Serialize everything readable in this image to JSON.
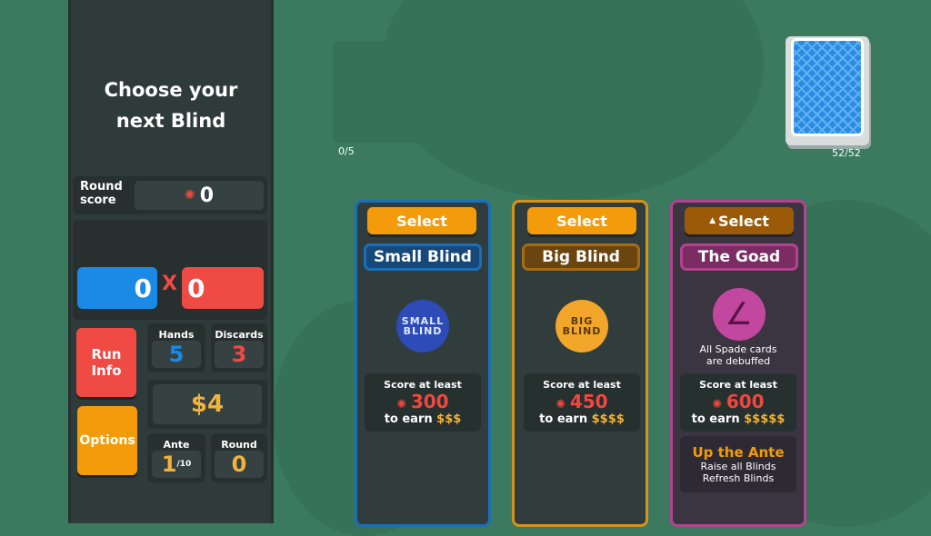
{
  "sidebar": {
    "heading_line1": "Choose your",
    "heading_line2": "next Blind",
    "round_score_label_1": "Round",
    "round_score_label_2": "score",
    "round_score": "0",
    "chips": "0",
    "mult": "0",
    "times": "X",
    "run_info_1": "Run",
    "run_info_2": "Info",
    "options": "Options",
    "hands_label": "Hands",
    "hands": "5",
    "discards_label": "Discards",
    "discards": "3",
    "money": "$4",
    "ante_label": "Ante",
    "ante": "1",
    "ante_max": "/10",
    "round_label": "Round",
    "round": "0"
  },
  "table": {
    "hand_count": "0/5",
    "deck_count": "52/52"
  },
  "blinds": [
    {
      "select": "Select",
      "name": "Small Blind",
      "chip_1": "SMALL",
      "chip_2": "BLIND",
      "score_label": "Score at least",
      "score": "300",
      "earn_label": "to earn",
      "reward": "$$$",
      "color": "#1a6fb5"
    },
    {
      "select": "Select",
      "name": "Big Blind",
      "chip_1": "BIG",
      "chip_2": "BLIND",
      "score_label": "Score at least",
      "score": "450",
      "earn_label": "to earn",
      "reward": "$$$$",
      "color": "#d7921c"
    },
    {
      "select": "Select",
      "name": "The Goad",
      "effect_1": "All Spade cards",
      "effect_2": "are debuffed",
      "score_label": "Score at least",
      "score": "600",
      "earn_label": "to earn",
      "reward": "$$$$$",
      "color": "#b2438f",
      "ante_title": "Up the Ante",
      "ante_1": "Raise all Blinds",
      "ante_2": "Refresh Blinds"
    }
  ],
  "colors": {
    "chips": "#1a8ae6",
    "mult": "#ef4a43",
    "select": "#f39b0b",
    "select_disabled": "#9a5a08",
    "felt": "#3b7a5e"
  }
}
